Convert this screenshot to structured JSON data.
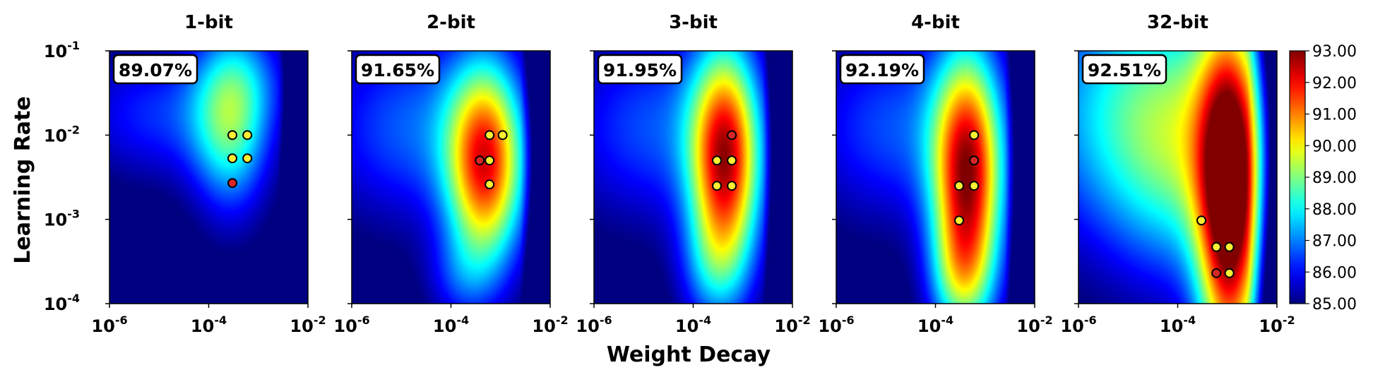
{
  "chart_data": {
    "type": "heatmap",
    "xlabel": "Weight Decay",
    "ylabel": "Learning Rate",
    "x_scale": "log",
    "y_scale": "log",
    "xlim": [
      1e-06,
      0.01
    ],
    "ylim": [
      0.0001,
      0.1
    ],
    "x_ticks": [
      {
        "value": 1e-06,
        "base": "10",
        "exp": "-6"
      },
      {
        "value": 0.0001,
        "base": "10",
        "exp": "-4"
      },
      {
        "value": 0.01,
        "base": "10",
        "exp": "-2"
      }
    ],
    "y_ticks": [
      {
        "value": 0.0001,
        "base": "10",
        "exp": "-4"
      },
      {
        "value": 0.001,
        "base": "10",
        "exp": "-3"
      },
      {
        "value": 0.01,
        "base": "10",
        "exp": "-2"
      },
      {
        "value": 0.1,
        "base": "10",
        "exp": "-1"
      }
    ],
    "colorbar": {
      "min": 85.0,
      "max": 93.0,
      "ticks": [
        "85.00",
        "86.00",
        "87.00",
        "88.00",
        "89.00",
        "90.00",
        "91.00",
        "92.00",
        "93.00"
      ],
      "colormap": "jet"
    },
    "point_colors": {
      "best": "#d62728",
      "top": "#ffee33"
    },
    "panels": [
      {
        "title": "1-bit",
        "best_accuracy": "89.07%",
        "peak": {
          "lx": -3.55,
          "ly": -1.85,
          "sx": 0.55,
          "sy": 0.75,
          "amp": 3.6
        },
        "base": 84.6,
        "extras": [
          {
            "lx": -5.0,
            "ly": -1.75,
            "sx": 1.2,
            "sy": 0.55,
            "amp": 2.8
          },
          {
            "lx": -3.1,
            "ly": -1.3,
            "sx": 0.7,
            "sy": 0.45,
            "amp": 1.5
          }
        ],
        "points": [
          {
            "wd": 0.0003,
            "lr": 0.01,
            "kind": "top"
          },
          {
            "wd": 0.0006,
            "lr": 0.01,
            "kind": "top"
          },
          {
            "wd": 0.0003,
            "lr": 0.0053,
            "kind": "top"
          },
          {
            "wd": 0.0006,
            "lr": 0.0053,
            "kind": "top"
          },
          {
            "wd": 0.0003,
            "lr": 0.0027,
            "kind": "best"
          }
        ]
      },
      {
        "title": "2-bit",
        "best_accuracy": "91.65%",
        "peak": {
          "lx": -3.3,
          "ly": -2.35,
          "sx": 0.55,
          "sy": 0.85,
          "amp": 6.8
        },
        "base": 84.6,
        "extras": [
          {
            "lx": -4.8,
            "ly": -1.9,
            "sx": 1.3,
            "sy": 0.8,
            "amp": 3.5
          },
          {
            "lx": -3.8,
            "ly": -3.7,
            "sx": 0.5,
            "sy": 0.4,
            "amp": 2.0
          }
        ],
        "points": [
          {
            "wd": 0.0006,
            "lr": 0.01,
            "kind": "top"
          },
          {
            "wd": 0.0011,
            "lr": 0.01,
            "kind": "top"
          },
          {
            "wd": 0.00038,
            "lr": 0.005,
            "kind": "best"
          },
          {
            "wd": 0.0006,
            "lr": 0.005,
            "kind": "top"
          },
          {
            "wd": 0.0006,
            "lr": 0.0026,
            "kind": "top"
          }
        ]
      },
      {
        "title": "3-bit",
        "best_accuracy": "91.95%",
        "peak": {
          "lx": -3.35,
          "ly": -2.3,
          "sx": 0.5,
          "sy": 0.95,
          "amp": 7.3
        },
        "base": 84.6,
        "extras": [
          {
            "lx": -4.8,
            "ly": -1.9,
            "sx": 1.3,
            "sy": 0.8,
            "amp": 3.3
          },
          {
            "lx": -3.6,
            "ly": -3.6,
            "sx": 0.5,
            "sy": 0.5,
            "amp": 2.6
          }
        ],
        "points": [
          {
            "wd": 0.0006,
            "lr": 0.01,
            "kind": "best"
          },
          {
            "wd": 0.0003,
            "lr": 0.005,
            "kind": "top"
          },
          {
            "wd": 0.0006,
            "lr": 0.005,
            "kind": "top"
          },
          {
            "wd": 0.0003,
            "lr": 0.0025,
            "kind": "top"
          },
          {
            "wd": 0.0006,
            "lr": 0.0025,
            "kind": "top"
          }
        ]
      },
      {
        "title": "4-bit",
        "best_accuracy": "92.19%",
        "peak": {
          "lx": -3.35,
          "ly": -2.5,
          "sx": 0.5,
          "sy": 1.05,
          "amp": 7.6
        },
        "base": 84.6,
        "extras": [
          {
            "lx": -4.8,
            "ly": -1.9,
            "sx": 1.3,
            "sy": 0.8,
            "amp": 3.3
          },
          {
            "lx": -3.5,
            "ly": -3.7,
            "sx": 0.45,
            "sy": 0.5,
            "amp": 3.5
          }
        ],
        "points": [
          {
            "wd": 0.0006,
            "lr": 0.01,
            "kind": "top"
          },
          {
            "wd": 0.0006,
            "lr": 0.005,
            "kind": "best"
          },
          {
            "wd": 0.0003,
            "lr": 0.0025,
            "kind": "top"
          },
          {
            "wd": 0.0006,
            "lr": 0.0025,
            "kind": "top"
          },
          {
            "wd": 0.0003,
            "lr": 0.00097,
            "kind": "top"
          }
        ]
      },
      {
        "title": "32-bit",
        "best_accuracy": "92.51%",
        "peak": {
          "lx": -2.95,
          "ly": -2.9,
          "sx": 0.45,
          "sy": 1.5,
          "amp": 7.9
        },
        "base": 84.6,
        "extras": [
          {
            "lx": -4.5,
            "ly": -1.7,
            "sx": 1.8,
            "sy": 1.1,
            "amp": 6.0
          },
          {
            "lx": -3.8,
            "ly": -2.5,
            "sx": 1.1,
            "sy": 1.0,
            "amp": 3.0
          }
        ],
        "points": [
          {
            "wd": 0.0003,
            "lr": 0.00097,
            "kind": "top"
          },
          {
            "wd": 0.0006,
            "lr": 0.00047,
            "kind": "top"
          },
          {
            "wd": 0.0011,
            "lr": 0.00047,
            "kind": "top"
          },
          {
            "wd": 0.0006,
            "lr": 0.00023,
            "kind": "best"
          },
          {
            "wd": 0.0011,
            "lr": 0.00023,
            "kind": "top"
          }
        ]
      }
    ]
  }
}
